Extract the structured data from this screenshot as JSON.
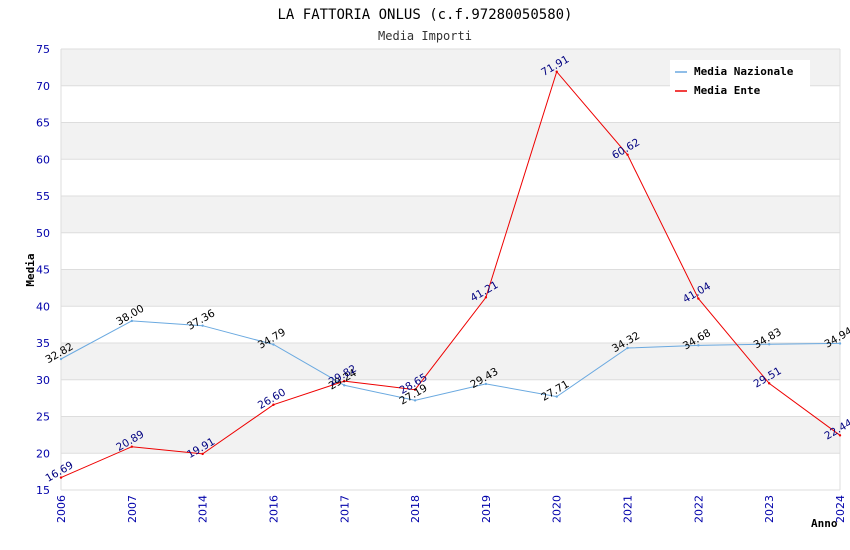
{
  "chart_data": {
    "type": "line",
    "title": "LA FATTORIA ONLUS (c.f.97280050580)",
    "subtitle": "Media Importi",
    "xlabel": "Anno",
    "ylabel": "Media",
    "categories": [
      "2006",
      "2007",
      "2014",
      "2016",
      "2017",
      "2018",
      "2019",
      "2020",
      "2021",
      "2022",
      "2023",
      "2024"
    ],
    "ylim": [
      15,
      75
    ],
    "yticks": [
      15,
      20,
      25,
      30,
      35,
      40,
      45,
      50,
      55,
      60,
      65,
      70,
      75
    ],
    "grid": true,
    "legend_position": "top-right",
    "series": [
      {
        "name": "Media Nazionale",
        "color": "#6aa9e0",
        "label_color": "#000000",
        "values": [
          32.82,
          38.0,
          37.36,
          34.79,
          29.24,
          27.19,
          29.43,
          27.71,
          34.32,
          34.68,
          34.83,
          34.94
        ],
        "labels": [
          "32.82",
          "38.00",
          "37.36",
          "34.79",
          "29.24",
          "27.19",
          "29.43",
          "27.71",
          "34.32",
          "34.68",
          "34.83",
          "34.94"
        ]
      },
      {
        "name": "Media Ente",
        "color": "#ee0000",
        "label_color": "#000080",
        "values": [
          16.69,
          20.89,
          19.91,
          26.6,
          29.82,
          28.65,
          41.21,
          71.91,
          60.62,
          41.04,
          29.51,
          22.44
        ],
        "labels": [
          "16.69",
          "20.89",
          "19.91",
          "26.60",
          "29.82",
          "28.65",
          "41.21",
          "71.91",
          "60.62",
          "41.04",
          "29.51",
          "22.44"
        ]
      }
    ]
  },
  "colors": {
    "band": "#f2f2f2",
    "gridline": "#dddddd",
    "tick_text": "#0000aa"
  }
}
